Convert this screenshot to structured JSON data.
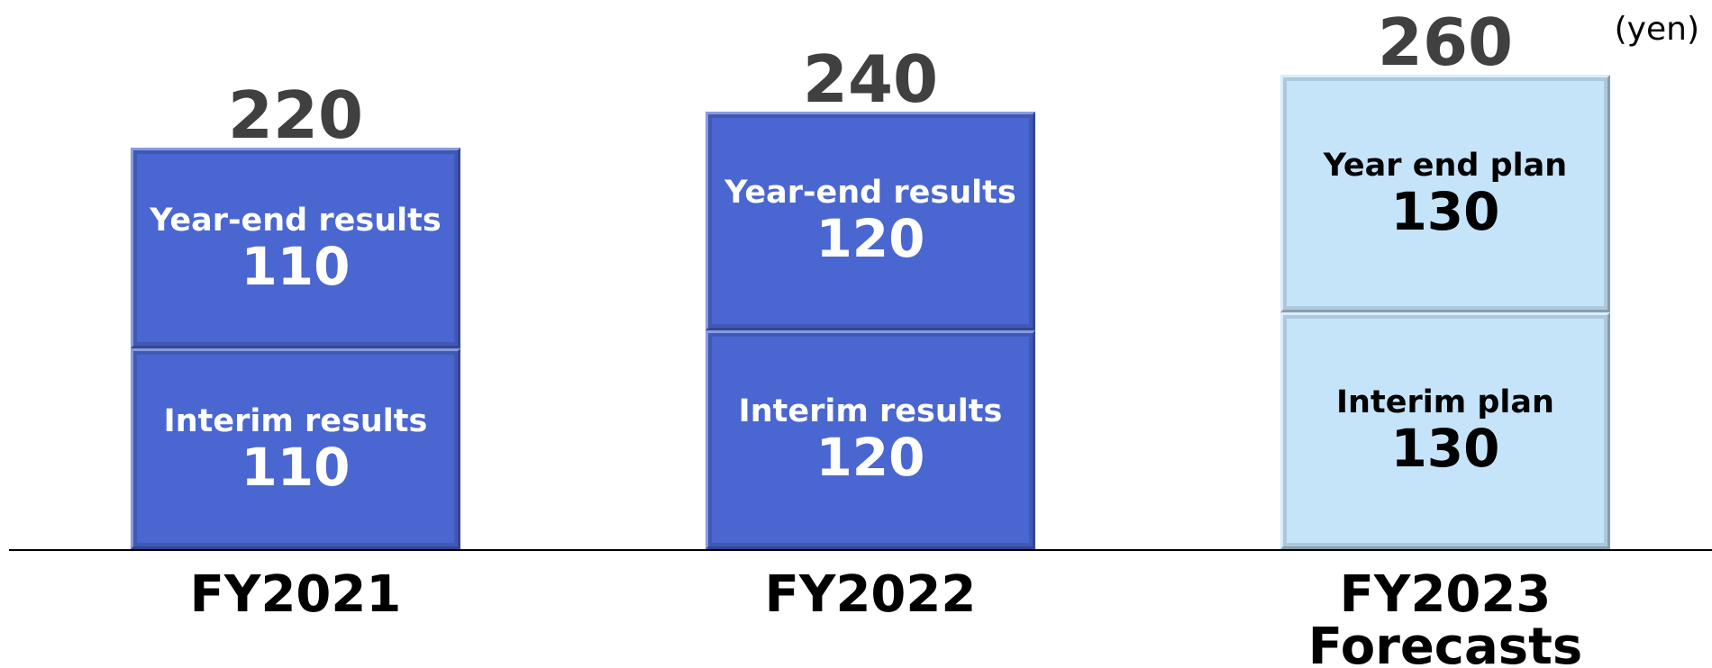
{
  "chart_data": {
    "type": "stacked-bar",
    "unit_label": "(yen)",
    "categories": [
      "FY2021",
      "FY2022",
      "FY2023 Forecasts"
    ],
    "series": [
      {
        "values": [
          110,
          120,
          130
        ],
        "labels": [
          "Interim results",
          "Interim results",
          "Interim plan"
        ]
      },
      {
        "values": [
          110,
          120,
          130
        ],
        "labels": [
          "Year-end results",
          "Year-end results",
          "Year end plan"
        ]
      }
    ],
    "totals": [
      220,
      240,
      260
    ],
    "bar_colors": [
      "#4a66d0",
      "#4a66d0",
      "#c5e4fa"
    ],
    "label_colors": [
      "#ffffff",
      "#ffffff",
      "#000000"
    ],
    "ylim": [
      0,
      300
    ]
  }
}
